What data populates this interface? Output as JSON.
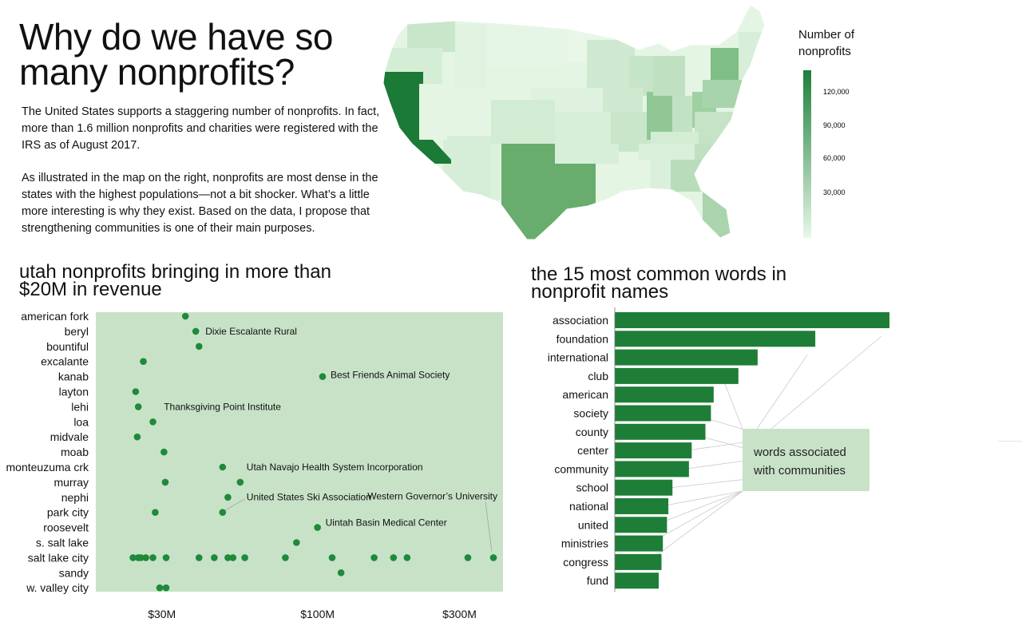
{
  "title": "Why do we have so many nonprofits?",
  "intro": [
    "The United States supports a staggering number of nonprofits. In fact, more than 1.6 million nonprofits and charities were registered with the IRS as of August 2017.",
    "As illustrated in the map on the right, nonprofits are most dense in the states with the highest populations—not a bit shocker. What’s a little more interesting is why they exist. Based on the data, I propose that strengthening communities is one of their main purposes."
  ],
  "map_legend": {
    "title": "Number of nonprofits",
    "ticks": [
      "120,000",
      "90,000",
      "60,000",
      "30,000"
    ],
    "color_low": "#e8f7e8",
    "color_high": "#1d7f3a"
  },
  "chart_data": [
    {
      "type": "scatter",
      "title": "utah nonprofits bringing in more than $20M in revenue",
      "x_scale": "log",
      "x_ticks": [
        "$30M",
        "$100M",
        "$300M"
      ],
      "x_tick_values": [
        30,
        100,
        300
      ],
      "xlim": [
        18,
        420
      ],
      "categories": [
        "american fork",
        "beryl",
        "bountiful",
        "excalante",
        "kanab",
        "layton",
        "lehi",
        "loa",
        "midvale",
        "moab",
        "monteuzuma crk",
        "murray",
        "nephi",
        "park city",
        "roosevelt",
        "s. salt lake",
        "salt lake city",
        "sandy",
        "w. valley city"
      ],
      "points": [
        {
          "city": "american fork",
          "revenue": 36
        },
        {
          "city": "beryl",
          "revenue": 39,
          "label": "Dixie Escalante Rural"
        },
        {
          "city": "bountiful",
          "revenue": 40
        },
        {
          "city": "excalante",
          "revenue": 26
        },
        {
          "city": "kanab",
          "revenue": 104,
          "label": "Best Friends Animal Society"
        },
        {
          "city": "layton",
          "revenue": 24.5
        },
        {
          "city": "lehi",
          "revenue": 25,
          "label": "Thanksgiving Point Institute"
        },
        {
          "city": "loa",
          "revenue": 28
        },
        {
          "city": "midvale",
          "revenue": 24.8
        },
        {
          "city": "moab",
          "revenue": 30.5
        },
        {
          "city": "monteuzuma crk",
          "revenue": 48,
          "label": "Utah Navajo Health System Incorporation"
        },
        {
          "city": "murray",
          "revenue": 30.8
        },
        {
          "city": "murray",
          "revenue": 55
        },
        {
          "city": "nephi",
          "revenue": 50
        },
        {
          "city": "park city",
          "revenue": 28.5
        },
        {
          "city": "park city",
          "revenue": 48,
          "label": "United States Ski Association"
        },
        {
          "city": "roosevelt",
          "revenue": 100,
          "label": "Uintah Basin Medical Center"
        },
        {
          "city": "s. salt lake",
          "revenue": 85
        },
        {
          "city": "salt lake city",
          "revenue": 24
        },
        {
          "city": "salt lake city",
          "revenue": 25
        },
        {
          "city": "salt lake city",
          "revenue": 25.5
        },
        {
          "city": "salt lake city",
          "revenue": 26.5
        },
        {
          "city": "salt lake city",
          "revenue": 28
        },
        {
          "city": "salt lake city",
          "revenue": 31
        },
        {
          "city": "salt lake city",
          "revenue": 40
        },
        {
          "city": "salt lake city",
          "revenue": 45
        },
        {
          "city": "salt lake city",
          "revenue": 50
        },
        {
          "city": "salt lake city",
          "revenue": 52
        },
        {
          "city": "salt lake city",
          "revenue": 57
        },
        {
          "city": "salt lake city",
          "revenue": 78
        },
        {
          "city": "salt lake city",
          "revenue": 112
        },
        {
          "city": "salt lake city",
          "revenue": 155
        },
        {
          "city": "salt lake city",
          "revenue": 180
        },
        {
          "city": "salt lake city",
          "revenue": 200
        },
        {
          "city": "salt lake city",
          "revenue": 320
        },
        {
          "city": "salt lake city",
          "revenue": 390,
          "label": "Western Governor’s University"
        },
        {
          "city": "sandy",
          "revenue": 120
        },
        {
          "city": "w. valley city",
          "revenue": 29.5
        },
        {
          "city": "w. valley city",
          "revenue": 31
        }
      ],
      "colors": {
        "background": "#c8e2c8",
        "point": "#1e8a3a"
      }
    },
    {
      "type": "bar",
      "orientation": "horizontal",
      "title": "the 15 most common words in nonprofit names",
      "categories": [
        "association",
        "foundation",
        "international",
        "club",
        "american",
        "society",
        "county",
        "center",
        "community",
        "school",
        "national",
        "united",
        "ministries",
        "congress",
        "fund"
      ],
      "values": [
        100,
        73,
        52,
        45,
        36,
        35,
        33,
        28,
        27,
        21,
        19.5,
        19,
        17.5,
        17,
        16
      ],
      "community_words": [
        "association",
        "foundation",
        "club",
        "society",
        "county",
        "center",
        "community",
        "school",
        "national",
        "united",
        "ministries",
        "congress"
      ],
      "callout": "words associated with communities",
      "colors": {
        "bar": "#1e7e38",
        "callout": "#c8e2c8"
      }
    }
  ]
}
